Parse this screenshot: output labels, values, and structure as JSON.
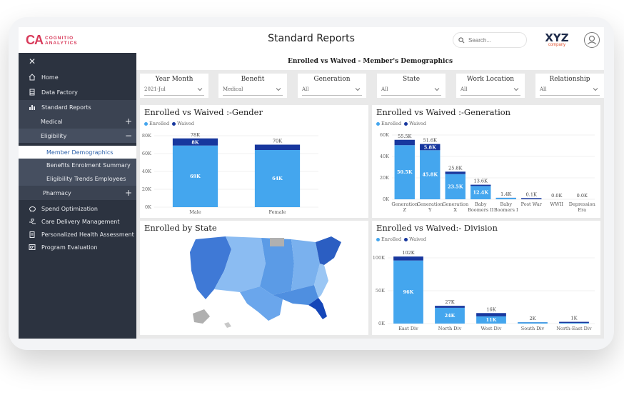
{
  "header": {
    "logo_mark": "CA",
    "logo_line1": "COGNITIO",
    "logo_line2": "ANALYTICS",
    "title": "Standard Reports",
    "search_placeholder": "Search...",
    "brand_main": "XYZ",
    "brand_sub": "company"
  },
  "sidebar": {
    "close": "✕",
    "items": [
      {
        "label": "Home",
        "icon": "home-icon"
      },
      {
        "label": "Data Factory",
        "icon": "database-icon"
      },
      {
        "label": "Standard Reports",
        "icon": "report-icon"
      },
      {
        "label": "Medical"
      },
      {
        "label": "Eligibility"
      },
      {
        "label": "Member Demographics"
      },
      {
        "label": "Benefits Enrolment Summary"
      },
      {
        "label": "Eligibility Trends Employees"
      },
      {
        "label": "Pharmacy"
      },
      {
        "label": "Spend Optimization",
        "icon": "piggy-bank-icon"
      },
      {
        "label": "Care Delivery Management",
        "icon": "care-icon"
      },
      {
        "label": "Personalized Health Assessment",
        "icon": "clipboard-icon"
      },
      {
        "label": "Program Evaluation",
        "icon": "evaluation-icon"
      }
    ],
    "plus": "+",
    "minus": "−"
  },
  "dashboard": {
    "title": "Enrolled vs Waived - Member's Demographics",
    "filters": [
      {
        "label": "Year Month",
        "value": "2021-Jul"
      },
      {
        "label": "Benefit",
        "value": "Medical"
      },
      {
        "label": "Generation",
        "value": "All"
      },
      {
        "label": "State",
        "value": "All"
      },
      {
        "label": "Work Location",
        "value": "All"
      },
      {
        "label": "Relationship",
        "value": "All"
      }
    ],
    "legend_enrolled": "Enrolled",
    "legend_waived": "Waived",
    "map_title": "Enrolled by State"
  },
  "colors": {
    "enrolled": "#44a6ee",
    "waived": "#17379e",
    "sidebar": "#2c3340",
    "accent": "#d83a5a"
  },
  "chart_data": [
    {
      "type": "bar",
      "title": "Enrolled vs Waived :-Gender",
      "categories": [
        "Male",
        "Female"
      ],
      "series": [
        {
          "name": "Enrolled",
          "values": [
            69,
            64
          ],
          "labels": [
            "69K",
            "64K"
          ]
        },
        {
          "name": "Waived",
          "values": [
            8,
            6
          ],
          "labels": [
            "8K",
            ""
          ]
        }
      ],
      "totals": [
        "78K",
        "70K"
      ],
      "total_values": [
        78,
        70
      ],
      "yticks": [
        "0K",
        "20K",
        "40K",
        "60K",
        "80K"
      ],
      "ylim": [
        0,
        80
      ]
    },
    {
      "type": "bar",
      "title": "Enrolled vs Waived :-Generation",
      "categories": [
        [
          "Generation",
          "Z"
        ],
        [
          "Generation",
          "Y"
        ],
        [
          "Generation",
          "X"
        ],
        [
          "Baby",
          "Boomers II"
        ],
        [
          "Baby",
          "Boomers I"
        ],
        [
          "Post War"
        ],
        [
          "WWII"
        ],
        [
          "Depression",
          "Era"
        ]
      ],
      "series": [
        {
          "name": "Enrolled",
          "values": [
            50.5,
            45.8,
            23.5,
            12.4,
            1.3,
            0.1,
            0,
            0
          ],
          "labels": [
            "50.5K",
            "45.8K",
            "23.5K",
            "12.4K",
            "",
            "",
            "",
            ""
          ]
        },
        {
          "name": "Waived",
          "values": [
            5,
            5.8,
            2.3,
            1.2,
            0.1,
            0,
            0,
            0
          ],
          "labels": [
            "",
            "5.8K",
            "",
            "",
            "",
            "",
            "",
            ""
          ]
        }
      ],
      "totals": [
        "55.5K",
        "51.6K",
        "25.8K",
        "13.6K",
        "1.4K",
        "0.1K",
        "0.0K",
        "0.0K"
      ],
      "total_values": [
        55.5,
        51.6,
        25.8,
        13.6,
        1.4,
        0.1,
        0,
        0
      ],
      "yticks": [
        "0K",
        "20K",
        "40K",
        "60K"
      ],
      "ylim": [
        0,
        60
      ]
    },
    {
      "type": "bar",
      "title": "Enrolled vs Waived:- Division",
      "categories": [
        [
          "East Div"
        ],
        [
          "North Div"
        ],
        [
          "West Div"
        ],
        [
          "South Div"
        ],
        [
          "North-East Div"
        ]
      ],
      "series": [
        {
          "name": "Enrolled",
          "values": [
            96,
            24,
            11,
            2,
            1
          ],
          "labels": [
            "96K",
            "24K",
            "11K",
            "",
            ""
          ]
        },
        {
          "name": "Waived",
          "values": [
            6,
            3,
            5,
            0.2,
            0.1
          ],
          "labels": [
            "",
            "",
            "",
            "",
            ""
          ]
        }
      ],
      "totals": [
        "102K",
        "27K",
        "16K",
        "2K",
        "1K"
      ],
      "total_values": [
        102,
        27,
        16,
        2,
        1
      ],
      "yticks": [
        "0K",
        "50K",
        "100K"
      ],
      "ylim": [
        0,
        100
      ]
    }
  ]
}
